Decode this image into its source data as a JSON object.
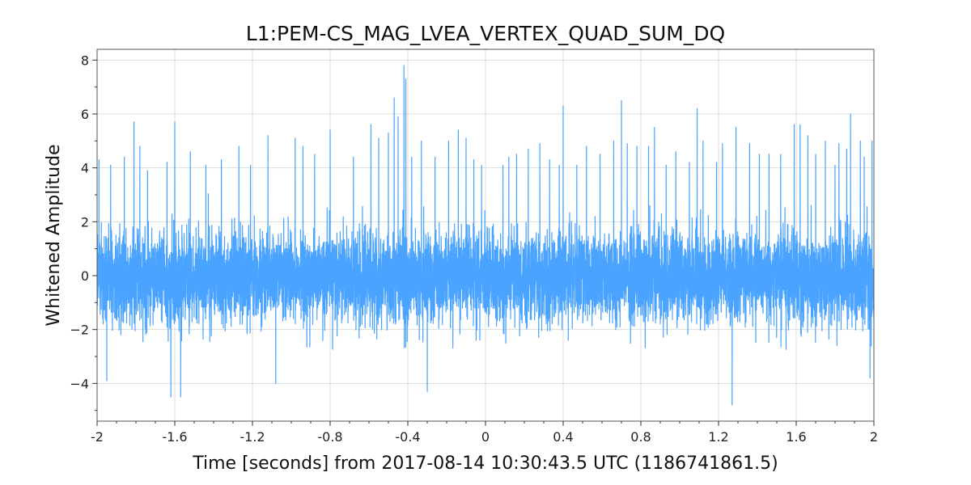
{
  "chart_data": {
    "type": "line",
    "title": "L1:PEM-CS_MAG_LVEA_VERTEX_QUAD_SUM_DQ",
    "xlabel": "Time [seconds] from 2017-08-14 10:30:43.5 UTC (1186741861.5)",
    "ylabel": "Whitened Amplitude",
    "xlim": [
      -2,
      2
    ],
    "ylim": [
      -5.4,
      8.4
    ],
    "x_ticks": [
      -2,
      -1.6,
      -1.2,
      -0.8,
      -0.4,
      0,
      0.4,
      0.8,
      1.2,
      1.6,
      2
    ],
    "x_tick_labels": [
      "-2",
      "-1.6",
      "-1.2",
      "-0.8",
      "-0.4",
      "0",
      "0.4",
      "0.8",
      "1.2",
      "1.6",
      "2"
    ],
    "y_ticks": [
      -4,
      -2,
      0,
      2,
      4,
      6,
      8
    ],
    "y_tick_labels": [
      "−4",
      "−2",
      "0",
      "2",
      "4",
      "6",
      "8"
    ],
    "grid": true,
    "series": [
      {
        "color": "#4aa3ff",
        "sample_rate_hz": 2048,
        "noise_sigma": 0.8,
        "peaks": [
          {
            "x": -1.99,
            "y": 4.3
          },
          {
            "x": -1.95,
            "y": -3.9
          },
          {
            "x": -1.93,
            "y": 4.1
          },
          {
            "x": -1.86,
            "y": 4.4
          },
          {
            "x": -1.81,
            "y": 5.7
          },
          {
            "x": -1.78,
            "y": 4.8
          },
          {
            "x": -1.74,
            "y": 3.9
          },
          {
            "x": -1.64,
            "y": 4.2
          },
          {
            "x": -1.6,
            "y": 5.7
          },
          {
            "x": -1.62,
            "y": -4.5
          },
          {
            "x": -1.57,
            "y": -4.5
          },
          {
            "x": -1.52,
            "y": 4.6
          },
          {
            "x": -1.44,
            "y": 4.1
          },
          {
            "x": -1.36,
            "y": 4.3
          },
          {
            "x": -1.27,
            "y": 4.8
          },
          {
            "x": -1.21,
            "y": 4.1
          },
          {
            "x": -1.12,
            "y": 5.2
          },
          {
            "x": -1.08,
            "y": 5.2
          },
          {
            "x": -1.08,
            "y": -4.0
          },
          {
            "x": -0.98,
            "y": 5.1
          },
          {
            "x": -0.94,
            "y": 4.8
          },
          {
            "x": -0.88,
            "y": 4.5
          },
          {
            "x": -0.8,
            "y": 5.4
          },
          {
            "x": -0.68,
            "y": 4.4
          },
          {
            "x": -0.59,
            "y": 5.6
          },
          {
            "x": -0.55,
            "y": 5.1
          },
          {
            "x": -0.5,
            "y": 5.3
          },
          {
            "x": -0.47,
            "y": 6.6
          },
          {
            "x": -0.45,
            "y": 5.9
          },
          {
            "x": -0.42,
            "y": 7.8
          },
          {
            "x": -0.41,
            "y": 7.3
          },
          {
            "x": -0.38,
            "y": 4.4
          },
          {
            "x": -0.33,
            "y": 5.0
          },
          {
            "x": -0.3,
            "y": -4.3
          },
          {
            "x": -0.26,
            "y": 4.4
          },
          {
            "x": -0.19,
            "y": 5.0
          },
          {
            "x": -0.14,
            "y": 5.4
          },
          {
            "x": -0.1,
            "y": 5.1
          },
          {
            "x": -0.06,
            "y": 4.3
          },
          {
            "x": -0.02,
            "y": 4.1
          },
          {
            "x": 0.09,
            "y": 4.1
          },
          {
            "x": 0.12,
            "y": 4.4
          },
          {
            "x": 0.16,
            "y": 4.5
          },
          {
            "x": 0.22,
            "y": 4.7
          },
          {
            "x": 0.28,
            "y": 4.9
          },
          {
            "x": 0.33,
            "y": 4.3
          },
          {
            "x": 0.38,
            "y": 4.1
          },
          {
            "x": 0.4,
            "y": 6.3
          },
          {
            "x": 0.47,
            "y": 4.1
          },
          {
            "x": 0.52,
            "y": 4.8
          },
          {
            "x": 0.59,
            "y": 4.5
          },
          {
            "x": 0.66,
            "y": 5.0
          },
          {
            "x": 0.7,
            "y": 6.5
          },
          {
            "x": 0.73,
            "y": 4.9
          },
          {
            "x": 0.78,
            "y": 4.8
          },
          {
            "x": 0.84,
            "y": 4.8
          },
          {
            "x": 0.87,
            "y": 5.5
          },
          {
            "x": 0.93,
            "y": 4.1
          },
          {
            "x": 0.98,
            "y": 4.6
          },
          {
            "x": 1.05,
            "y": 4.2
          },
          {
            "x": 1.09,
            "y": 6.2
          },
          {
            "x": 1.12,
            "y": 5.0
          },
          {
            "x": 1.19,
            "y": 4.2
          },
          {
            "x": 1.22,
            "y": 4.9
          },
          {
            "x": 1.27,
            "y": -4.8
          },
          {
            "x": 1.29,
            "y": 5.5
          },
          {
            "x": 1.36,
            "y": 4.9
          },
          {
            "x": 1.41,
            "y": 4.5
          },
          {
            "x": 1.46,
            "y": 4.5
          },
          {
            "x": 1.52,
            "y": 4.5
          },
          {
            "x": 1.59,
            "y": 5.6
          },
          {
            "x": 1.62,
            "y": 5.6
          },
          {
            "x": 1.66,
            "y": 5.2
          },
          {
            "x": 1.7,
            "y": 4.5
          },
          {
            "x": 1.75,
            "y": 5.0
          },
          {
            "x": 1.8,
            "y": 4.1
          },
          {
            "x": 1.82,
            "y": 4.9
          },
          {
            "x": 1.86,
            "y": 4.7
          },
          {
            "x": 1.88,
            "y": 6.0
          },
          {
            "x": 1.93,
            "y": 5.0
          },
          {
            "x": 1.95,
            "y": 4.4
          },
          {
            "x": 1.99,
            "y": 5.0
          },
          {
            "x": 1.98,
            "y": -3.8
          }
        ]
      }
    ]
  }
}
